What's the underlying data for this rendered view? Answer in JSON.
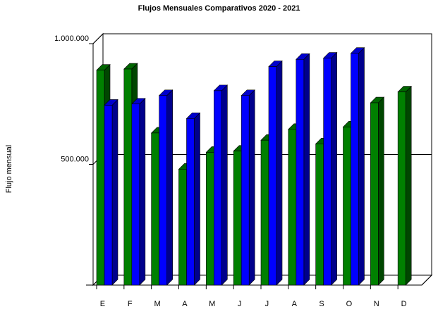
{
  "chart_data": {
    "type": "bar",
    "title": "Flujos Mensuales Comparativos 2020 - 2021",
    "xlabel": "",
    "ylabel": "Flujo mensual",
    "categories": [
      "E",
      "F",
      "M",
      "A",
      "M",
      "J",
      "J",
      "A",
      "S",
      "O",
      "N",
      "D"
    ],
    "y_ticks": [
      {
        "value": 500000,
        "label": "500.000"
      },
      {
        "value": 1000000,
        "label": "1.000.000"
      }
    ],
    "ylim": [
      0,
      1000000
    ],
    "grid": "horizontal",
    "legend": "none",
    "style": "3d",
    "series": [
      {
        "color": "#008000",
        "values": [
          890000,
          895000,
          630000,
          480000,
          550000,
          555000,
          600000,
          645000,
          585000,
          655000,
          755000,
          800000
        ]
      },
      {
        "color": "#0000ff",
        "values": [
          745000,
          750000,
          785000,
          690000,
          805000,
          785000,
          905000,
          935000,
          940000,
          960000,
          null,
          null
        ]
      }
    ]
  }
}
